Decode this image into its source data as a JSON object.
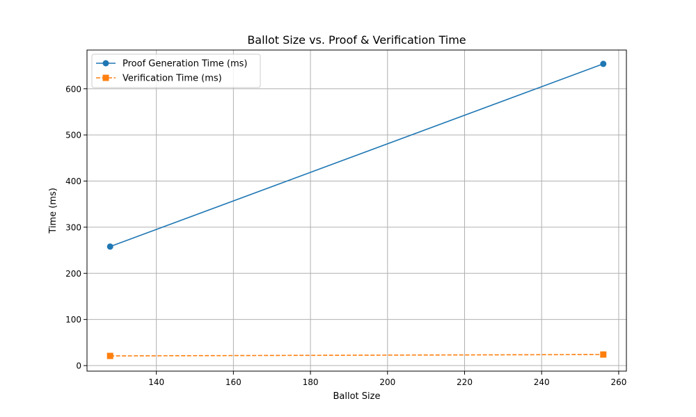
{
  "chart_data": {
    "type": "line",
    "title": "Ballot Size vs. Proof & Verification Time",
    "xlabel": "Ballot Size",
    "ylabel": "Time (ms)",
    "xlim": [
      122,
      262
    ],
    "ylim": [
      -12,
      684
    ],
    "xticks": [
      140,
      160,
      180,
      200,
      220,
      240,
      260
    ],
    "yticks": [
      0,
      100,
      200,
      300,
      400,
      500,
      600
    ],
    "grid": true,
    "legend_position": "upper-left",
    "series": [
      {
        "name": "Proof Generation Time (ms)",
        "x": [
          128,
          256
        ],
        "y": [
          258,
          654
        ],
        "color": "#1f77b4",
        "marker": "circle",
        "linestyle": "solid"
      },
      {
        "name": "Verification Time (ms)",
        "x": [
          128,
          256
        ],
        "y": [
          21,
          24
        ],
        "color": "#ff7f0e",
        "marker": "square",
        "linestyle": "dashed"
      }
    ]
  }
}
